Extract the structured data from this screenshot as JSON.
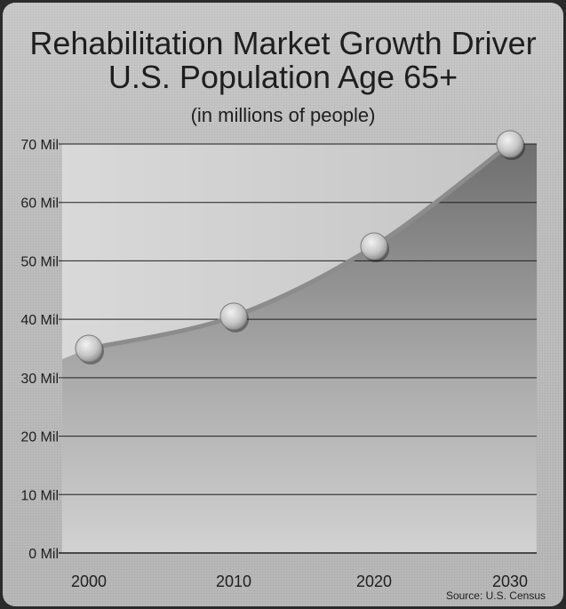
{
  "chart_data": {
    "type": "line",
    "title": "Rehabilitation Market Growth Driver",
    "subtitle": "U.S. Population Age 65+",
    "unit_note": "(in millions of people)",
    "source": "Source: U.S. Census",
    "categories": [
      "2000",
      "2010",
      "2020",
      "2030"
    ],
    "series": [
      {
        "values": [
          35,
          40.5,
          52.5,
          70
        ]
      }
    ],
    "y_ticks": [
      {
        "value": 0,
        "label": "0 Mil"
      },
      {
        "value": 10,
        "label": "10 Mil"
      },
      {
        "value": 20,
        "label": "20 Mil"
      },
      {
        "value": 30,
        "label": "30 Mil"
      },
      {
        "value": 40,
        "label": "40 Mil"
      },
      {
        "value": 50,
        "label": "50 Mil"
      },
      {
        "value": 60,
        "label": "60 Mil"
      },
      {
        "value": 70,
        "label": "70 Mil"
      }
    ],
    "ylim": [
      0,
      70
    ],
    "grid": true,
    "xlabel": "",
    "ylabel": ""
  }
}
